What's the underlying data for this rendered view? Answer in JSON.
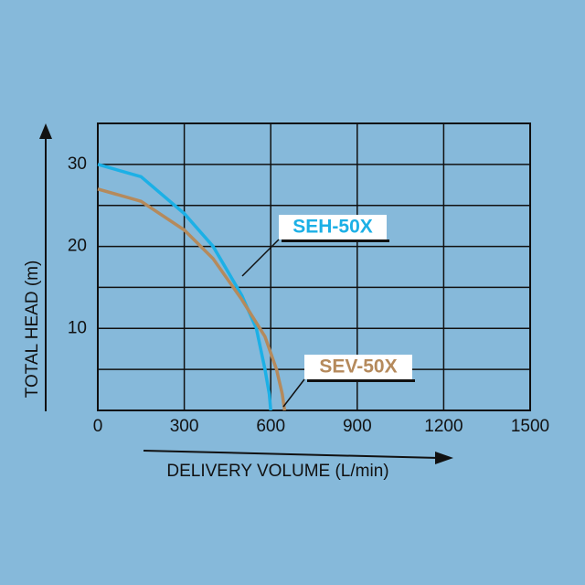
{
  "chart_data": {
    "type": "line",
    "xlabel": "DELIVERY VOLUME (L/min)",
    "ylabel": "TOTAL HEAD (m)",
    "xlim": [
      0,
      1500
    ],
    "xticks": [
      0,
      300,
      600,
      900,
      1200,
      1500
    ],
    "ylim": [
      0,
      35
    ],
    "yticks": [
      10,
      20,
      30
    ],
    "yminorticks": [
      5,
      15,
      25
    ],
    "grid": true,
    "series": [
      {
        "name": "SEH-50X",
        "color": "#1cb0e6",
        "x": [
          0,
          150,
          300,
          400,
          500,
          550,
          580,
          595,
          600
        ],
        "values": [
          30,
          28.5,
          24,
          20,
          14,
          10,
          5,
          2,
          0
        ]
      },
      {
        "name": "SEV-50X",
        "color": "#b58a5c",
        "x": [
          0,
          150,
          300,
          400,
          500,
          580,
          620,
          640,
          648
        ],
        "values": [
          27,
          25.5,
          22,
          18.5,
          13.5,
          9,
          5,
          2,
          0
        ]
      }
    ]
  }
}
